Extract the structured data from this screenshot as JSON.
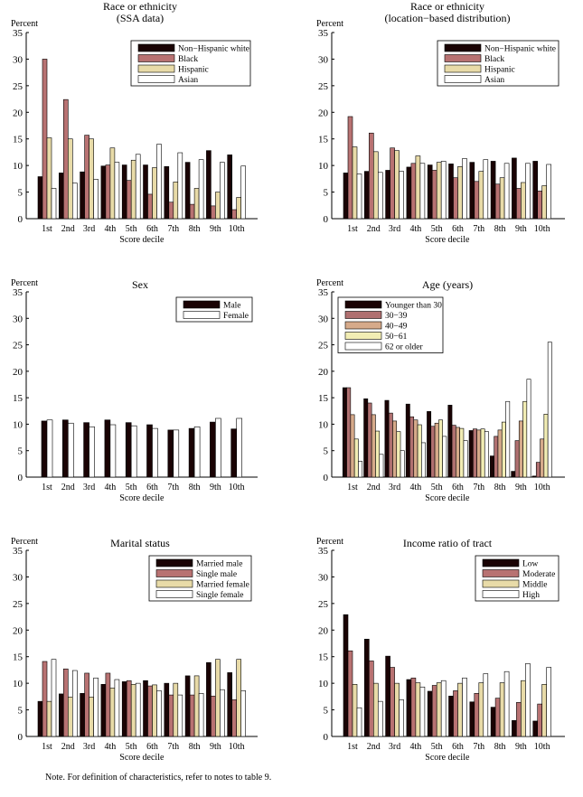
{
  "note": "Note. For definition of characteristics, refer to notes to table 9.",
  "chart_data": [
    {
      "type": "bar",
      "title": [
        "Race or ethnicity",
        "(SSA data)"
      ],
      "ylabel": "Percent",
      "xlabel": "Score decile",
      "ylim": [
        0,
        35
      ],
      "yticks": [
        0,
        5,
        10,
        15,
        20,
        25,
        30,
        35
      ],
      "categories": [
        "1st",
        "2nd",
        "3rd",
        "4th",
        "5th",
        "6th",
        "7th",
        "8th",
        "9th",
        "10th"
      ],
      "legend_position": "top-right",
      "series": [
        {
          "name": "Non−Hispanic white",
          "color": "#1a0304",
          "values": [
            7.9,
            8.6,
            8.8,
            9.9,
            10.1,
            10.1,
            9.8,
            10.6,
            12.8,
            12.0
          ]
        },
        {
          "name": "Black",
          "color": "#b87272",
          "values": [
            30.0,
            22.4,
            15.7,
            10.1,
            7.2,
            4.6,
            3.1,
            2.7,
            2.4,
            1.7
          ]
        },
        {
          "name": "Hispanic",
          "color": "#e8dba8",
          "values": [
            15.2,
            15.0,
            15.0,
            13.3,
            11.0,
            9.6,
            6.9,
            5.7,
            5.0,
            4.0
          ]
        },
        {
          "name": "Asian",
          "color": "#ffffff",
          "values": [
            5.7,
            6.7,
            7.4,
            10.6,
            12.1,
            14.0,
            12.4,
            11.1,
            10.6,
            9.9
          ]
        }
      ]
    },
    {
      "type": "bar",
      "title": [
        "Race or ethnicity",
        "(location−based distribution)"
      ],
      "ylabel": "Percent",
      "xlabel": "Score decile",
      "ylim": [
        0,
        35
      ],
      "yticks": [
        0,
        5,
        10,
        15,
        20,
        25,
        30,
        35
      ],
      "categories": [
        "1st",
        "2nd",
        "3rd",
        "4th",
        "5th",
        "6th",
        "7th",
        "8th",
        "9th",
        "10th"
      ],
      "legend_position": "top-right",
      "series": [
        {
          "name": "Non−Hispanic white",
          "color": "#1a0304",
          "values": [
            8.6,
            8.9,
            9.1,
            9.7,
            10.1,
            10.3,
            10.6,
            10.8,
            11.4,
            10.8
          ]
        },
        {
          "name": "Black",
          "color": "#b87272",
          "values": [
            19.2,
            16.1,
            13.3,
            10.4,
            9.1,
            7.7,
            7.0,
            6.5,
            5.7,
            5.2
          ]
        },
        {
          "name": "Hispanic",
          "color": "#e8dba8",
          "values": [
            13.5,
            12.6,
            12.8,
            11.8,
            10.6,
            9.8,
            8.9,
            7.7,
            6.8,
            6.2
          ]
        },
        {
          "name": "Asian",
          "color": "#ffffff",
          "values": [
            8.4,
            8.7,
            8.9,
            10.4,
            10.8,
            11.3,
            11.1,
            10.4,
            10.4,
            10.2
          ]
        }
      ]
    },
    {
      "type": "bar",
      "title": [
        "Sex"
      ],
      "ylabel": "Percent",
      "xlabel": "Score decile",
      "ylim": [
        0,
        35
      ],
      "yticks": [
        0,
        5,
        10,
        15,
        20,
        25,
        30,
        35
      ],
      "categories": [
        "1st",
        "2nd",
        "3rd",
        "4th",
        "5th",
        "6th",
        "7th",
        "8th",
        "9th",
        "10th"
      ],
      "legend_position": "top-right",
      "series": [
        {
          "name": "Male",
          "color": "#1a0304",
          "values": [
            10.6,
            10.8,
            10.3,
            10.8,
            10.3,
            9.9,
            8.9,
            9.2,
            10.4,
            9.1
          ]
        },
        {
          "name": "Female",
          "color": "#ffffff",
          "values": [
            10.8,
            10.2,
            9.5,
            9.9,
            9.7,
            9.2,
            8.9,
            9.5,
            11.1,
            11.1
          ]
        }
      ]
    },
    {
      "type": "bar",
      "title": [
        "Age (years)"
      ],
      "ylabel": "Percent",
      "xlabel": "Score decile",
      "ylim": [
        0,
        35
      ],
      "yticks": [
        0,
        5,
        10,
        15,
        20,
        25,
        30,
        35
      ],
      "categories": [
        "1st",
        "2nd",
        "3rd",
        "4th",
        "5th",
        "6th",
        "7th",
        "8th",
        "9th",
        "10th"
      ],
      "legend_position": "top-left",
      "series": [
        {
          "name": "Younger than 30",
          "color": "#1a0304",
          "values": [
            16.9,
            14.8,
            14.5,
            13.8,
            12.4,
            13.6,
            8.8,
            4.0,
            1.1,
            0.2
          ]
        },
        {
          "name": "30−39",
          "color": "#b07070",
          "values": [
            16.9,
            14.0,
            12.1,
            11.4,
            9.6,
            9.8,
            9.1,
            7.7,
            6.9,
            2.8
          ]
        },
        {
          "name": "40−49",
          "color": "#d6aa8a",
          "values": [
            11.8,
            11.8,
            10.6,
            10.8,
            10.2,
            9.4,
            8.9,
            8.9,
            10.6,
            7.2
          ]
        },
        {
          "name": "50−61",
          "color": "#f2edb4",
          "values": [
            7.2,
            8.7,
            8.6,
            9.9,
            10.8,
            9.2,
            9.1,
            10.4,
            14.3,
            11.9
          ]
        },
        {
          "name": "62 or older",
          "color": "#ffffff",
          "values": [
            3.0,
            4.3,
            5.0,
            6.5,
            7.7,
            6.9,
            8.6,
            14.3,
            18.5,
            25.5
          ]
        }
      ]
    },
    {
      "type": "bar",
      "title": [
        "Marital status"
      ],
      "ylabel": "Percent",
      "xlabel": "Score decile",
      "ylim": [
        0,
        35
      ],
      "yticks": [
        0,
        5,
        10,
        15,
        20,
        25,
        30,
        35
      ],
      "categories": [
        "1st",
        "2nd",
        "3rd",
        "4th",
        "5th",
        "6th",
        "7th",
        "8th",
        "9th",
        "10th"
      ],
      "legend_position": "top-right",
      "series": [
        {
          "name": "Married male",
          "color": "#1a0304",
          "values": [
            6.6,
            8.0,
            8.1,
            9.8,
            10.3,
            10.5,
            10.0,
            11.4,
            13.9,
            12.0
          ]
        },
        {
          "name": "Single male",
          "color": "#b87272",
          "values": [
            14.1,
            12.7,
            11.9,
            11.9,
            10.5,
            9.5,
            7.8,
            7.8,
            7.6,
            6.9
          ]
        },
        {
          "name": "Married female",
          "color": "#e8dba8",
          "values": [
            6.6,
            7.4,
            7.4,
            9.1,
            9.8,
            9.7,
            10.0,
            11.4,
            14.5,
            14.5
          ]
        },
        {
          "name": "Single female",
          "color": "#ffffff",
          "values": [
            14.5,
            12.4,
            11.0,
            10.7,
            10.0,
            8.6,
            7.8,
            8.1,
            8.8,
            8.6
          ]
        }
      ]
    },
    {
      "type": "bar",
      "title": [
        "Income ratio of tract"
      ],
      "ylabel": "Percent",
      "xlabel": "Score decile",
      "ylim": [
        0,
        35
      ],
      "yticks": [
        0,
        5,
        10,
        15,
        20,
        25,
        30,
        35
      ],
      "categories": [
        "1st",
        "2nd",
        "3rd",
        "4th",
        "5th",
        "6th",
        "7th",
        "8th",
        "9th",
        "10th"
      ],
      "legend_position": "top-right",
      "series": [
        {
          "name": "Low",
          "color": "#1a0304",
          "values": [
            22.9,
            18.3,
            15.1,
            10.7,
            8.5,
            7.6,
            6.5,
            5.5,
            3.0,
            2.9
          ]
        },
        {
          "name": "Moderate",
          "color": "#b87272",
          "values": [
            16.1,
            14.2,
            13.0,
            11.0,
            9.6,
            8.6,
            8.1,
            7.2,
            6.4,
            6.1
          ]
        },
        {
          "name": "Middle",
          "color": "#e8dba8",
          "values": [
            9.8,
            10.0,
            10.0,
            10.1,
            10.1,
            10.0,
            10.1,
            10.1,
            10.5,
            9.8
          ]
        },
        {
          "name": "High",
          "color": "#ffffff",
          "values": [
            5.4,
            6.6,
            6.9,
            9.3,
            10.5,
            11.0,
            11.8,
            12.2,
            13.7,
            13.0
          ]
        }
      ]
    }
  ]
}
